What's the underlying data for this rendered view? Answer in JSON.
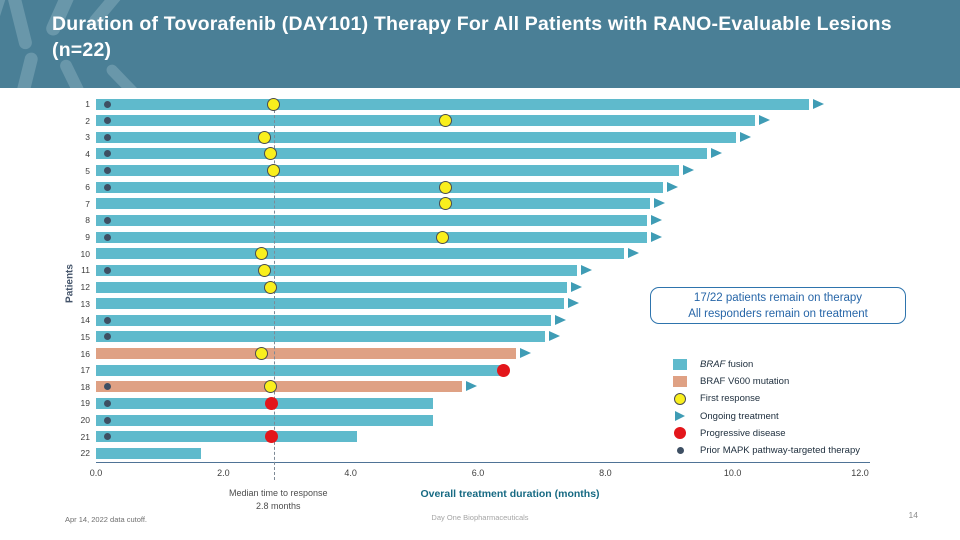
{
  "slide": {
    "title": "Duration of Tovorafenib (DAY101) Therapy For All Patients with RANO-Evaluable Lesions (n=22)",
    "footer_left": "Apr 14, 2022 data cutoff.",
    "footer_center": "Day One Biopharmaceuticals",
    "page_number": "14"
  },
  "callout": {
    "line1": "17/22 patients remain on therapy",
    "line2": "All responders remain on treatment"
  },
  "colors": {
    "header_bg": "#4a7f96",
    "braf_fusion_bar": "#5fbacc",
    "braf_v600_bar": "#dfa184",
    "ongoing_arrow": "#3f9cb5",
    "first_response": "#f9ef1d",
    "progressive_disease": "#e3161b",
    "prior_mapk_dot": "#3e4f63",
    "callout_blue": "#2e74ad",
    "xlabel_teal": "#176a83"
  },
  "chart_data": {
    "type": "bar",
    "orientation": "horizontal",
    "title": "",
    "xlabel": "Overall treatment duration (months)",
    "ylabel": "Patients",
    "xlim": [
      0.0,
      12.0
    ],
    "xticks": [
      "0.0",
      "2.0",
      "4.0",
      "6.0",
      "8.0",
      "10.0",
      "12.0"
    ],
    "grid": false,
    "median_annotation": {
      "x": 2.8,
      "line1": "Median time to response",
      "line2": "2.8 months"
    },
    "legend_position": "right",
    "legend": [
      {
        "key": "fusion",
        "swatch": "rect-teal",
        "italic_prefix": "BRAF",
        "label": " fusion"
      },
      {
        "key": "v600",
        "swatch": "rect-salmon",
        "italic_prefix": "",
        "label": "BRAF V600 mutation"
      },
      {
        "key": "first-response",
        "swatch": "circle-yellow",
        "italic_prefix": "",
        "label": "First response"
      },
      {
        "key": "ongoing",
        "swatch": "triangle-teal",
        "italic_prefix": "",
        "label": "Ongoing treatment"
      },
      {
        "key": "progressive",
        "swatch": "circle-red",
        "italic_prefix": "",
        "label": "Progressive disease"
      },
      {
        "key": "prior-mapk",
        "swatch": "dot-navy",
        "italic_prefix": "",
        "label": "Prior MAPK pathway-targeted therapy"
      }
    ],
    "patients": [
      {
        "id": 1,
        "months": 11.2,
        "type": "fusion",
        "first_response": 2.8,
        "ongoing": true,
        "progression": null,
        "prior_mapk": true
      },
      {
        "id": 2,
        "months": 10.35,
        "type": "fusion",
        "first_response": 5.5,
        "ongoing": true,
        "progression": null,
        "prior_mapk": true
      },
      {
        "id": 3,
        "months": 10.05,
        "type": "fusion",
        "first_response": 2.65,
        "ongoing": true,
        "progression": null,
        "prior_mapk": true
      },
      {
        "id": 4,
        "months": 9.6,
        "type": "fusion",
        "first_response": 2.75,
        "ongoing": true,
        "progression": null,
        "prior_mapk": true
      },
      {
        "id": 5,
        "months": 9.15,
        "type": "fusion",
        "first_response": 2.8,
        "ongoing": true,
        "progression": null,
        "prior_mapk": true
      },
      {
        "id": 6,
        "months": 8.9,
        "type": "fusion",
        "first_response": 5.5,
        "ongoing": true,
        "progression": null,
        "prior_mapk": true
      },
      {
        "id": 7,
        "months": 8.7,
        "type": "fusion",
        "first_response": 5.5,
        "ongoing": true,
        "progression": null,
        "prior_mapk": false
      },
      {
        "id": 8,
        "months": 8.65,
        "type": "fusion",
        "first_response": null,
        "ongoing": true,
        "progression": null,
        "prior_mapk": true
      },
      {
        "id": 9,
        "months": 8.65,
        "type": "fusion",
        "first_response": 5.45,
        "ongoing": true,
        "progression": null,
        "prior_mapk": true
      },
      {
        "id": 10,
        "months": 8.3,
        "type": "fusion",
        "first_response": 2.6,
        "ongoing": true,
        "progression": null,
        "prior_mapk": false
      },
      {
        "id": 11,
        "months": 7.55,
        "type": "fusion",
        "first_response": 2.65,
        "ongoing": true,
        "progression": null,
        "prior_mapk": true
      },
      {
        "id": 12,
        "months": 7.4,
        "type": "fusion",
        "first_response": 2.75,
        "ongoing": true,
        "progression": null,
        "prior_mapk": false
      },
      {
        "id": 13,
        "months": 7.35,
        "type": "fusion",
        "first_response": null,
        "ongoing": true,
        "progression": null,
        "prior_mapk": false
      },
      {
        "id": 14,
        "months": 7.15,
        "type": "fusion",
        "first_response": null,
        "ongoing": true,
        "progression": null,
        "prior_mapk": true
      },
      {
        "id": 15,
        "months": 7.05,
        "type": "fusion",
        "first_response": null,
        "ongoing": true,
        "progression": null,
        "prior_mapk": true
      },
      {
        "id": 16,
        "months": 6.6,
        "type": "v600",
        "first_response": 2.6,
        "ongoing": true,
        "progression": null,
        "prior_mapk": false
      },
      {
        "id": 17,
        "months": 6.45,
        "type": "fusion",
        "first_response": null,
        "ongoing": false,
        "progression": 6.4,
        "prior_mapk": false
      },
      {
        "id": 18,
        "months": 5.75,
        "type": "v600",
        "first_response": 2.75,
        "ongoing": true,
        "progression": null,
        "prior_mapk": true
      },
      {
        "id": 19,
        "months": 5.3,
        "type": "fusion",
        "first_response": null,
        "ongoing": false,
        "progression": 2.75,
        "prior_mapk": true
      },
      {
        "id": 20,
        "months": 5.3,
        "type": "fusion",
        "first_response": null,
        "ongoing": false,
        "progression": null,
        "prior_mapk": true
      },
      {
        "id": 21,
        "months": 4.1,
        "type": "fusion",
        "first_response": null,
        "ongoing": false,
        "progression": 2.75,
        "prior_mapk": true
      },
      {
        "id": 22,
        "months": 1.65,
        "type": "fusion",
        "first_response": null,
        "ongoing": false,
        "progression": null,
        "prior_mapk": false
      }
    ]
  }
}
